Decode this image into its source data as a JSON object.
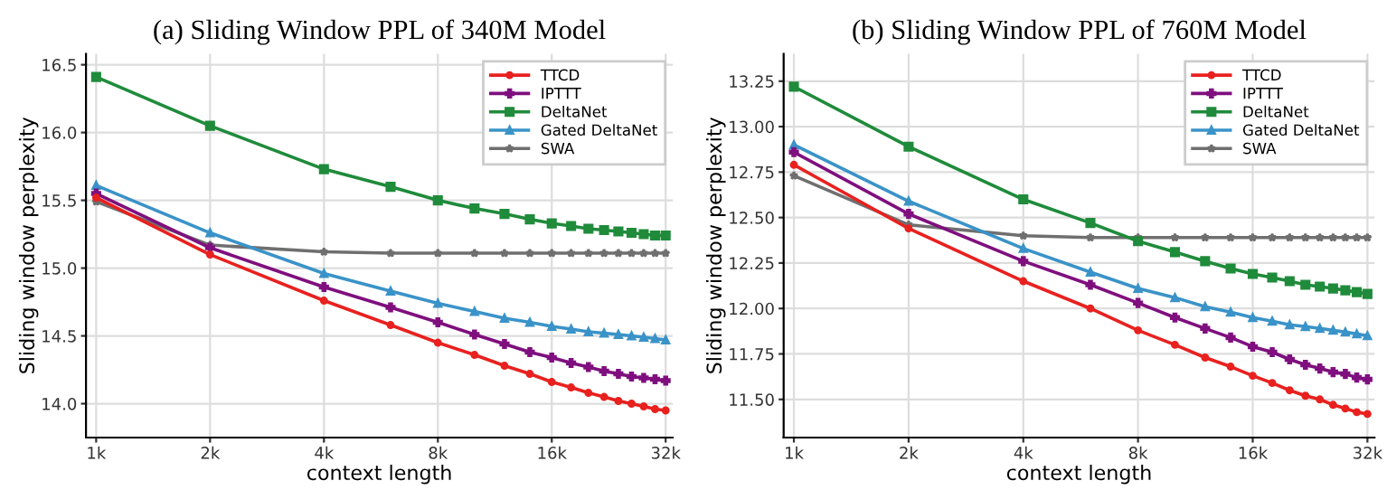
{
  "chart_data": [
    {
      "type": "line",
      "title": "(a) Sliding Window PPL of 340M Model",
      "xlabel": "context length",
      "ylabel": "Sliding window perplexity",
      "log": "x",
      "x": [
        1,
        2,
        4,
        6,
        8,
        10,
        12,
        14,
        16,
        18,
        20,
        22,
        24,
        26,
        28,
        30,
        32
      ],
      "xlim": [
        0.94,
        33.4
      ],
      "xticks": [
        {
          "value": 1,
          "label": "1k"
        },
        {
          "value": 2,
          "label": "2k"
        },
        {
          "value": 4,
          "label": "4k"
        },
        {
          "value": 8,
          "label": "8k"
        },
        {
          "value": 16,
          "label": "16k"
        },
        {
          "value": 32,
          "label": "32k"
        }
      ],
      "ylim": [
        13.75,
        16.58
      ],
      "yticks": [
        {
          "value": 14.0,
          "label": "14.0"
        },
        {
          "value": 14.5,
          "label": "14.5"
        },
        {
          "value": 15.0,
          "label": "15.0"
        },
        {
          "value": 15.5,
          "label": "15.5"
        },
        {
          "value": 16.0,
          "label": "16.0"
        },
        {
          "value": 16.5,
          "label": "16.5"
        }
      ],
      "grid": true,
      "legend": "top right",
      "line_style": "solid",
      "series": [
        {
          "name": "TTCD",
          "color": "#e8211f",
          "marker": "circle",
          "values": [
            15.52,
            15.1,
            14.76,
            14.58,
            14.45,
            14.36,
            14.28,
            14.22,
            14.16,
            14.12,
            14.08,
            14.05,
            14.02,
            14.0,
            13.98,
            13.96,
            13.95
          ]
        },
        {
          "name": "IPTTT",
          "color": "#7f0f7e",
          "marker": "cross",
          "values": [
            15.55,
            15.15,
            14.86,
            14.71,
            14.6,
            14.51,
            14.44,
            14.38,
            14.34,
            14.3,
            14.27,
            14.24,
            14.22,
            14.2,
            14.19,
            14.18,
            14.17
          ]
        },
        {
          "name": "DeltaNet",
          "color": "#1f8b3b",
          "marker": "square",
          "values": [
            16.41,
            16.05,
            15.73,
            15.6,
            15.5,
            15.44,
            15.4,
            15.36,
            15.33,
            15.31,
            15.29,
            15.28,
            15.27,
            15.26,
            15.25,
            15.24,
            15.24
          ]
        },
        {
          "name": "Gated DeltaNet",
          "color": "#3a93c8",
          "marker": "triangle",
          "values": [
            15.61,
            15.26,
            14.96,
            14.83,
            14.74,
            14.68,
            14.63,
            14.6,
            14.57,
            14.55,
            14.53,
            14.52,
            14.51,
            14.5,
            14.49,
            14.48,
            14.47
          ]
        },
        {
          "name": "SWA",
          "color": "#6f6f6f",
          "marker": "star",
          "values": [
            15.49,
            15.17,
            15.12,
            15.11,
            15.11,
            15.11,
            15.11,
            15.11,
            15.11,
            15.11,
            15.11,
            15.11,
            15.11,
            15.11,
            15.11,
            15.11,
            15.11
          ]
        }
      ]
    },
    {
      "type": "line",
      "title": "(b) Sliding Window PPL of 760M Model",
      "xlabel": "context length",
      "ylabel": "Sliding window perplexity",
      "log": "x",
      "x": [
        1,
        2,
        4,
        6,
        8,
        10,
        12,
        14,
        16,
        18,
        20,
        22,
        24,
        26,
        28,
        30,
        32
      ],
      "xlim": [
        0.94,
        33.4
      ],
      "xticks": [
        {
          "value": 1,
          "label": "1k"
        },
        {
          "value": 2,
          "label": "2k"
        },
        {
          "value": 4,
          "label": "4k"
        },
        {
          "value": 8,
          "label": "8k"
        },
        {
          "value": 16,
          "label": "16k"
        },
        {
          "value": 32,
          "label": "32k"
        }
      ],
      "ylim": [
        11.29,
        13.4
      ],
      "yticks": [
        {
          "value": 11.5,
          "label": "11.50"
        },
        {
          "value": 11.75,
          "label": "11.75"
        },
        {
          "value": 12.0,
          "label": "12.00"
        },
        {
          "value": 12.25,
          "label": "12.25"
        },
        {
          "value": 12.5,
          "label": "12.50"
        },
        {
          "value": 12.75,
          "label": "12.75"
        },
        {
          "value": 13.0,
          "label": "13.00"
        },
        {
          "value": 13.25,
          "label": "13.25"
        }
      ],
      "grid": true,
      "legend": "top right",
      "line_style": "solid",
      "series": [
        {
          "name": "TTCD",
          "color": "#e8211f",
          "marker": "circle",
          "values": [
            12.79,
            12.44,
            12.15,
            12.0,
            11.88,
            11.8,
            11.73,
            11.68,
            11.63,
            11.59,
            11.55,
            11.52,
            11.5,
            11.47,
            11.45,
            11.43,
            11.42
          ]
        },
        {
          "name": "IPTTT",
          "color": "#7f0f7e",
          "marker": "cross",
          "values": [
            12.86,
            12.52,
            12.26,
            12.13,
            12.03,
            11.95,
            11.89,
            11.84,
            11.79,
            11.76,
            11.72,
            11.69,
            11.67,
            11.65,
            11.64,
            11.62,
            11.61
          ]
        },
        {
          "name": "DeltaNet",
          "color": "#1f8b3b",
          "marker": "square",
          "values": [
            13.22,
            12.89,
            12.6,
            12.47,
            12.37,
            12.31,
            12.26,
            12.22,
            12.19,
            12.17,
            12.15,
            12.13,
            12.12,
            12.11,
            12.1,
            12.09,
            12.08
          ]
        },
        {
          "name": "Gated DeltaNet",
          "color": "#3a93c8",
          "marker": "triangle",
          "values": [
            12.9,
            12.59,
            12.33,
            12.2,
            12.11,
            12.06,
            12.01,
            11.98,
            11.95,
            11.93,
            11.91,
            11.9,
            11.89,
            11.88,
            11.87,
            11.86,
            11.85
          ]
        },
        {
          "name": "SWA",
          "color": "#6f6f6f",
          "marker": "star",
          "values": [
            12.73,
            12.46,
            12.4,
            12.39,
            12.39,
            12.39,
            12.39,
            12.39,
            12.39,
            12.39,
            12.39,
            12.39,
            12.39,
            12.39,
            12.39,
            12.39,
            12.39
          ]
        }
      ]
    }
  ]
}
